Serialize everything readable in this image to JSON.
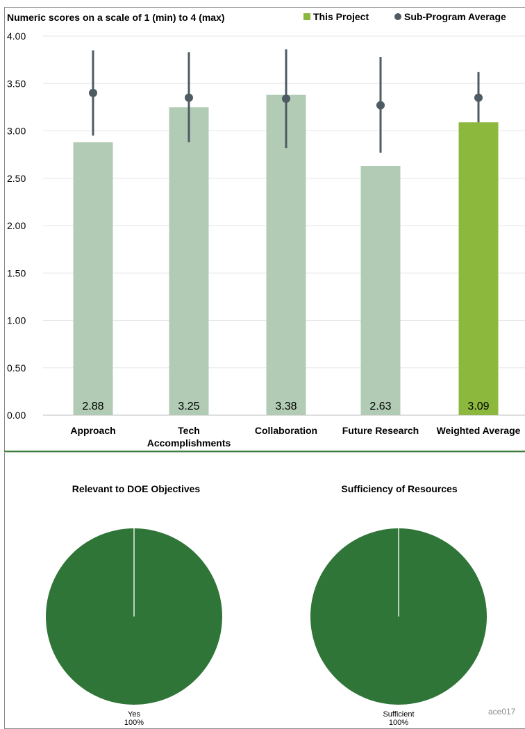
{
  "chart_data": [
    {
      "type": "bar",
      "title": "Numeric scores on a scale of 1 (min) to 4 (max)",
      "categories": [
        "Approach",
        "Tech Accomplishments",
        "Collaboration",
        "Future Research",
        "Weighted Average"
      ],
      "category_lines": [
        [
          "Approach"
        ],
        [
          "Tech",
          "Accomplishments"
        ],
        [
          "Collaboration"
        ],
        [
          "Future Research"
        ],
        [
          "Weighted Average"
        ]
      ],
      "series": [
        {
          "name": "This Project",
          "values": [
            2.88,
            3.25,
            3.38,
            2.63,
            3.09
          ],
          "value_labels": [
            "2.88",
            "3.25",
            "3.38",
            "2.63",
            "3.09"
          ]
        },
        {
          "name": "Sub-Program Average",
          "values": [
            3.4,
            3.35,
            3.34,
            3.27,
            3.35
          ],
          "error_low": [
            2.95,
            2.88,
            2.82,
            2.77,
            3.09
          ],
          "error_high": [
            3.85,
            3.83,
            3.86,
            3.78,
            3.62
          ]
        }
      ],
      "ylim": [
        0,
        4
      ],
      "yticks": [
        "0.00",
        "0.50",
        "1.00",
        "1.50",
        "2.00",
        "2.50",
        "3.00",
        "3.50",
        "4.00"
      ],
      "grid": true,
      "legend": "top-right",
      "colors": {
        "bar": "#b1cbb4",
        "highlight_bar": "#8cb93d",
        "marker": "#4f5b63",
        "legend_swatch": "#8cb93d",
        "grid": "#e6e6e6"
      }
    },
    {
      "type": "pie",
      "title": "Relevant to DOE Objectives",
      "categories": [
        "Yes"
      ],
      "values": [
        100
      ],
      "labels": [
        "Yes",
        "100%"
      ],
      "colors": [
        "#2f7538"
      ]
    },
    {
      "type": "pie",
      "title": "Sufficiency of Resources",
      "categories": [
        "Sufficient"
      ],
      "values": [
        100
      ],
      "labels": [
        "Sufficient",
        "100%"
      ],
      "colors": [
        "#2f7538"
      ]
    }
  ],
  "footer": {
    "code": "ace017"
  }
}
